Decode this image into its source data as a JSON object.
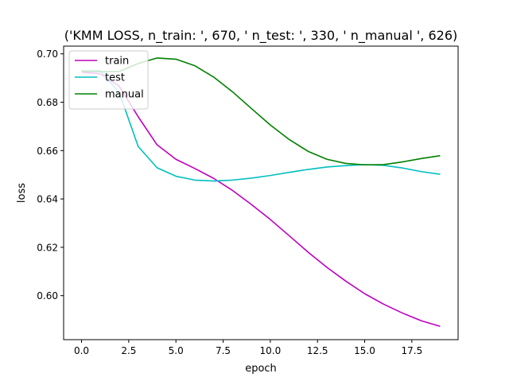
{
  "chart_data": {
    "type": "line",
    "title": "('KMM LOSS, n_train: ', 670, ' n_test: ', 330, ' n_manual ', 626)",
    "xlabel": "epoch",
    "ylabel": "loss",
    "xlim": [
      -0.95,
      19.95
    ],
    "ylim": [
      0.5818,
      0.7032
    ],
    "xticks": [
      0.0,
      2.5,
      5.0,
      7.5,
      10.0,
      12.5,
      15.0,
      17.5
    ],
    "xtick_labels": [
      "0.0",
      "2.5",
      "5.0",
      "7.5",
      "10.0",
      "12.5",
      "15.0",
      "17.5"
    ],
    "yticks": [
      0.6,
      0.62,
      0.64,
      0.66,
      0.68,
      0.7
    ],
    "ytick_labels": [
      "0.60",
      "0.62",
      "0.64",
      "0.66",
      "0.68",
      "0.70"
    ],
    "grid": false,
    "legend_position": "upper-left",
    "x": [
      0,
      1,
      2,
      3,
      4,
      5,
      6,
      7,
      8,
      9,
      10,
      11,
      12,
      13,
      14,
      15,
      16,
      17,
      18,
      19
    ],
    "series": [
      {
        "name": "train",
        "color": "#bf00bf",
        "values": [
          0.6925,
          0.6917,
          0.6866,
          0.674,
          0.6624,
          0.6564,
          0.6526,
          0.6485,
          0.6435,
          0.6377,
          0.6315,
          0.6248,
          0.618,
          0.6117,
          0.606,
          0.6008,
          0.5965,
          0.5928,
          0.5896,
          0.5873
        ]
      },
      {
        "name": "test",
        "color": "#00bfbf",
        "values": [
          0.693,
          0.693,
          0.6839,
          0.6617,
          0.6529,
          0.6494,
          0.6478,
          0.6474,
          0.6478,
          0.6486,
          0.6497,
          0.651,
          0.6522,
          0.6532,
          0.6538,
          0.6542,
          0.6539,
          0.6528,
          0.6513,
          0.6502
        ]
      },
      {
        "name": "manual",
        "color": "#008000",
        "values": [
          0.6928,
          0.6926,
          0.6927,
          0.696,
          0.6983,
          0.6978,
          0.6951,
          0.6904,
          0.6843,
          0.6774,
          0.6706,
          0.6646,
          0.6597,
          0.6564,
          0.6547,
          0.6541,
          0.6542,
          0.6553,
          0.6567,
          0.6579
        ]
      }
    ]
  }
}
